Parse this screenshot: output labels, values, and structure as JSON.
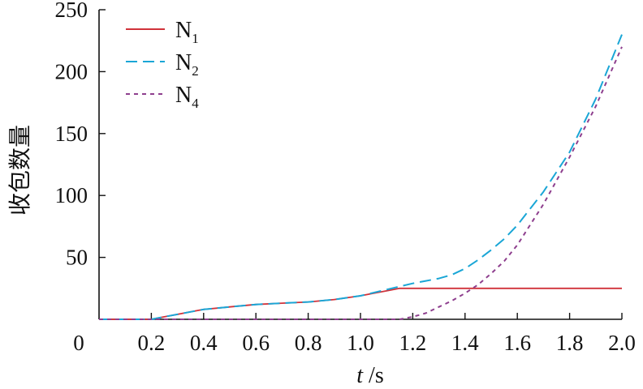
{
  "chart_data": {
    "type": "line",
    "title": "",
    "xlabel_italic": "t",
    "xlabel_unit": " /s",
    "ylabel": "收包数量",
    "xlim": [
      0,
      2.0
    ],
    "ylim": [
      0,
      250
    ],
    "x_ticks": [
      0.2,
      0.4,
      0.6,
      0.8,
      1.0,
      1.2,
      1.4,
      1.6,
      1.8,
      2.0
    ],
    "x_tick_labels": [
      "0.2",
      "0.4",
      "0.6",
      "0.8",
      "1.0",
      "1.2",
      "1.4",
      "1.6",
      "1.8",
      "2.0"
    ],
    "y_ticks": [
      0,
      50,
      100,
      150,
      200,
      250
    ],
    "y_tick_labels": [
      "0",
      "50",
      "100",
      "150",
      "200",
      "250"
    ],
    "grid": false,
    "legend_position": "top-left",
    "series": [
      {
        "name": "N",
        "sub": "1",
        "color": "#d0323a",
        "style": "solid",
        "x": [
          0,
          0.2,
          0.25,
          0.3,
          0.35,
          0.4,
          0.5,
          0.6,
          0.7,
          0.8,
          0.9,
          1.0,
          1.05,
          1.1,
          1.15,
          1.2,
          1.4,
          1.6,
          1.8,
          2.0
        ],
        "y": [
          0,
          0,
          2,
          4,
          6,
          8,
          10,
          12,
          13,
          14,
          16,
          19,
          21,
          23,
          25,
          25,
          25,
          25,
          25,
          25
        ]
      },
      {
        "name": "N",
        "sub": "2",
        "color": "#1aa6d6",
        "style": "dashed",
        "x": [
          0,
          0.2,
          0.25,
          0.3,
          0.35,
          0.4,
          0.5,
          0.6,
          0.7,
          0.8,
          0.9,
          1.0,
          1.1,
          1.2,
          1.25,
          1.3,
          1.35,
          1.4,
          1.45,
          1.5,
          1.55,
          1.6,
          1.7,
          1.8,
          1.9,
          2.0
        ],
        "y": [
          0,
          0,
          2,
          4,
          6,
          8,
          10,
          12,
          13,
          14,
          16,
          19,
          24,
          29,
          31,
          33,
          36,
          41,
          48,
          56,
          65,
          76,
          103,
          135,
          178,
          230
        ]
      },
      {
        "name": "N",
        "sub": "4",
        "color": "#8e3f8e",
        "style": "dotted",
        "x": [
          0,
          0.2,
          0.4,
          0.6,
          0.8,
          1.0,
          1.15,
          1.2,
          1.25,
          1.3,
          1.35,
          1.4,
          1.45,
          1.5,
          1.55,
          1.6,
          1.7,
          1.8,
          1.9,
          2.0
        ],
        "y": [
          0,
          0,
          0,
          0,
          0,
          0,
          0,
          2,
          5,
          10,
          15,
          21,
          28,
          37,
          47,
          60,
          93,
          131,
          172,
          220
        ]
      }
    ]
  }
}
